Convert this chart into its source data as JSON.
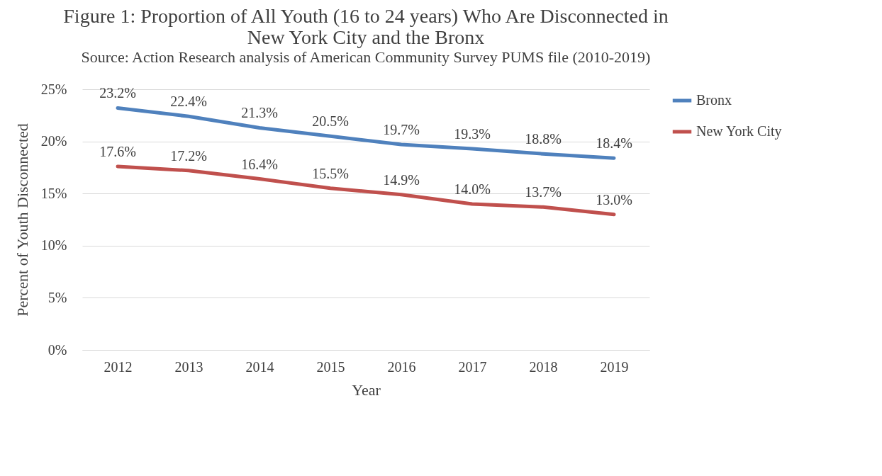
{
  "chart_data": {
    "type": "line",
    "title": "Figure 1: Proportion of All Youth (16 to 24 years) Who Are Disconnected in New York City and the Bronx",
    "subtitle": "Source: Action Research analysis of American Community Survey PUMS file (2010-2019)",
    "xlabel": "Year",
    "ylabel": "Percent of Youth Disconnected",
    "categories": [
      "2012",
      "2013",
      "2014",
      "2015",
      "2016",
      "2017",
      "2018",
      "2019"
    ],
    "series": [
      {
        "name": "Bronx",
        "color": "#4f81bd",
        "values": [
          23.2,
          22.4,
          21.3,
          20.5,
          19.7,
          19.3,
          18.8,
          18.4
        ],
        "value_labels": [
          "23.2%",
          "22.4%",
          "21.3%",
          "20.5%",
          "19.7%",
          "19.3%",
          "18.8%",
          "18.4%"
        ]
      },
      {
        "name": "New York City",
        "color": "#c0504d",
        "values": [
          17.6,
          17.2,
          16.4,
          15.5,
          14.9,
          14.0,
          13.7,
          13.0
        ],
        "value_labels": [
          "17.6%",
          "17.2%",
          "16.4%",
          "15.5%",
          "14.9%",
          "14.0%",
          "13.7%",
          "13.0%"
        ]
      }
    ],
    "ylim": [
      0,
      25
    ],
    "yticks": [
      {
        "value": 0,
        "label": "0%"
      },
      {
        "value": 5,
        "label": "5%"
      },
      {
        "value": 10,
        "label": "10%"
      },
      {
        "value": 15,
        "label": "15%"
      },
      {
        "value": 20,
        "label": "20%"
      },
      {
        "value": 25,
        "label": "25%"
      }
    ],
    "grid": "y",
    "legend": "right",
    "marker": "none",
    "line_style": "solid"
  }
}
